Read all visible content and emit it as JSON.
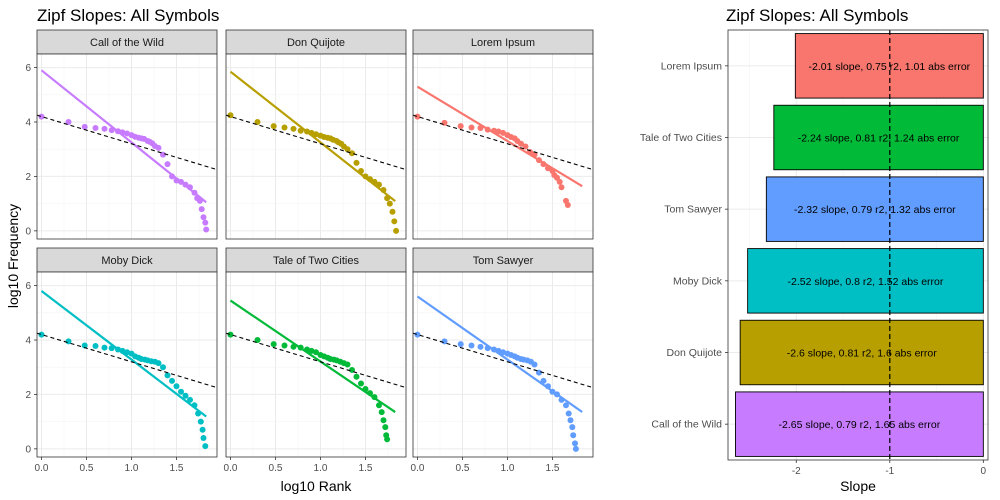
{
  "left_panel": {
    "title": "Zipf Slopes: All Symbols",
    "xlabel": "log10 Rank",
    "ylabel": "log10 Frequency",
    "xlim": [
      -0.05,
      1.95
    ],
    "ylim": [
      -0.3,
      6.5
    ],
    "xticks": [
      0.0,
      0.5,
      1.0,
      1.5
    ],
    "xtick_labels": [
      "0.0",
      "0.5",
      "1.0",
      "1.5"
    ],
    "yticks": [
      0,
      2,
      4,
      6
    ],
    "ytick_labels": [
      "0",
      "2",
      "4",
      "6"
    ],
    "reference_line": {
      "intercept": 4.2,
      "slope": -1,
      "style": "dashed"
    }
  },
  "right_panel": {
    "title": "Zipf Slopes: All Symbols",
    "xlabel": "Slope",
    "xlim": [
      -2.73,
      0.05
    ],
    "xticks": [
      -2,
      -1,
      0
    ],
    "xtick_labels": [
      "-2",
      "-1",
      "0"
    ],
    "reference_x": -1
  },
  "chart_data": [
    {
      "type": "scatter",
      "title": "Zipf Slopes: All Symbols",
      "xlabel": "log10 Rank",
      "ylabel": "log10 Frequency",
      "facets": [
        {
          "name": "Call of the Wild",
          "color": "#C77CFF",
          "fit": {
            "intercept": 5.9,
            "slope": -2.65
          },
          "points": [
            [
              0.0,
              4.2
            ],
            [
              0.3,
              4.0
            ],
            [
              0.48,
              3.82
            ],
            [
              0.6,
              3.78
            ],
            [
              0.7,
              3.75
            ],
            [
              0.78,
              3.7
            ],
            [
              0.85,
              3.66
            ],
            [
              0.9,
              3.62
            ],
            [
              0.95,
              3.58
            ],
            [
              1.0,
              3.52
            ],
            [
              1.04,
              3.46
            ],
            [
              1.08,
              3.42
            ],
            [
              1.11,
              3.4
            ],
            [
              1.14,
              3.38
            ],
            [
              1.18,
              3.3
            ],
            [
              1.2,
              3.28
            ],
            [
              1.23,
              3.22
            ],
            [
              1.26,
              3.12
            ],
            [
              1.3,
              3.05
            ],
            [
              1.35,
              2.8
            ],
            [
              1.4,
              2.45
            ],
            [
              1.45,
              2.0
            ],
            [
              1.5,
              1.85
            ],
            [
              1.55,
              1.8
            ],
            [
              1.6,
              1.7
            ],
            [
              1.65,
              1.6
            ],
            [
              1.7,
              1.4
            ],
            [
              1.73,
              1.2
            ],
            [
              1.76,
              1.1
            ],
            [
              1.78,
              0.8
            ],
            [
              1.8,
              0.5
            ],
            [
              1.82,
              0.3
            ],
            [
              1.83,
              0.05
            ]
          ]
        },
        {
          "name": "Don Quijote",
          "color": "#B79F00",
          "fit": {
            "intercept": 5.85,
            "slope": -2.6
          },
          "points": [
            [
              0.0,
              4.25
            ],
            [
              0.3,
              4.0
            ],
            [
              0.48,
              3.85
            ],
            [
              0.6,
              3.8
            ],
            [
              0.7,
              3.75
            ],
            [
              0.78,
              3.68
            ],
            [
              0.85,
              3.65
            ],
            [
              0.9,
              3.6
            ],
            [
              0.95,
              3.55
            ],
            [
              1.0,
              3.5
            ],
            [
              1.04,
              3.45
            ],
            [
              1.08,
              3.42
            ],
            [
              1.11,
              3.4
            ],
            [
              1.14,
              3.35
            ],
            [
              1.18,
              3.3
            ],
            [
              1.2,
              3.25
            ],
            [
              1.23,
              3.2
            ],
            [
              1.26,
              3.1
            ],
            [
              1.3,
              3.0
            ],
            [
              1.35,
              2.85
            ],
            [
              1.4,
              2.5
            ],
            [
              1.45,
              2.2
            ],
            [
              1.5,
              2.0
            ],
            [
              1.55,
              1.9
            ],
            [
              1.6,
              1.8
            ],
            [
              1.65,
              1.7
            ],
            [
              1.7,
              1.5
            ],
            [
              1.74,
              1.2
            ],
            [
              1.77,
              1.0
            ],
            [
              1.8,
              0.7
            ],
            [
              1.82,
              0.35
            ],
            [
              1.84,
              0.0
            ]
          ]
        },
        {
          "name": "Lorem Ipsum",
          "color": "#F8766D",
          "fit": {
            "intercept": 5.3,
            "slope": -2.0
          },
          "points": [
            [
              0.0,
              4.2
            ],
            [
              0.3,
              3.97
            ],
            [
              0.48,
              3.85
            ],
            [
              0.6,
              3.8
            ],
            [
              0.7,
              3.78
            ],
            [
              0.78,
              3.72
            ],
            [
              0.85,
              3.68
            ],
            [
              0.9,
              3.65
            ],
            [
              0.95,
              3.6
            ],
            [
              1.0,
              3.52
            ],
            [
              1.04,
              3.45
            ],
            [
              1.08,
              3.4
            ],
            [
              1.11,
              3.3
            ],
            [
              1.15,
              3.2
            ],
            [
              1.2,
              3.1
            ],
            [
              1.25,
              2.9
            ],
            [
              1.3,
              2.8
            ],
            [
              1.35,
              2.6
            ],
            [
              1.4,
              2.45
            ],
            [
              1.45,
              2.3
            ],
            [
              1.5,
              2.2
            ],
            [
              1.52,
              2.05
            ],
            [
              1.55,
              1.95
            ],
            [
              1.58,
              1.8
            ],
            [
              1.6,
              1.6
            ],
            [
              1.65,
              1.1
            ],
            [
              1.67,
              0.95
            ]
          ]
        },
        {
          "name": "Moby Dick",
          "color": "#00BFC4",
          "fit": {
            "intercept": 5.8,
            "slope": -2.52
          },
          "points": [
            [
              0.0,
              4.2
            ],
            [
              0.3,
              3.95
            ],
            [
              0.48,
              3.8
            ],
            [
              0.6,
              3.78
            ],
            [
              0.7,
              3.72
            ],
            [
              0.78,
              3.7
            ],
            [
              0.85,
              3.65
            ],
            [
              0.9,
              3.6
            ],
            [
              0.95,
              3.55
            ],
            [
              1.0,
              3.5
            ],
            [
              1.04,
              3.4
            ],
            [
              1.08,
              3.35
            ],
            [
              1.11,
              3.3
            ],
            [
              1.15,
              3.28
            ],
            [
              1.18,
              3.25
            ],
            [
              1.22,
              3.22
            ],
            [
              1.26,
              3.2
            ],
            [
              1.3,
              3.15
            ],
            [
              1.35,
              3.0
            ],
            [
              1.4,
              2.7
            ],
            [
              1.45,
              2.5
            ],
            [
              1.5,
              2.3
            ],
            [
              1.55,
              2.1
            ],
            [
              1.6,
              1.95
            ],
            [
              1.65,
              1.8
            ],
            [
              1.7,
              1.6
            ],
            [
              1.74,
              1.3
            ],
            [
              1.77,
              1.0
            ],
            [
              1.79,
              0.7
            ],
            [
              1.8,
              0.4
            ],
            [
              1.82,
              0.1
            ]
          ]
        },
        {
          "name": "Tale of Two Cities",
          "color": "#00BA38",
          "fit": {
            "intercept": 5.45,
            "slope": -2.24
          },
          "points": [
            [
              0.0,
              4.2
            ],
            [
              0.3,
              4.0
            ],
            [
              0.48,
              3.85
            ],
            [
              0.6,
              3.8
            ],
            [
              0.7,
              3.75
            ],
            [
              0.78,
              3.72
            ],
            [
              0.85,
              3.65
            ],
            [
              0.9,
              3.6
            ],
            [
              0.95,
              3.55
            ],
            [
              1.0,
              3.45
            ],
            [
              1.04,
              3.4
            ],
            [
              1.08,
              3.35
            ],
            [
              1.11,
              3.3
            ],
            [
              1.15,
              3.28
            ],
            [
              1.18,
              3.25
            ],
            [
              1.22,
              3.2
            ],
            [
              1.26,
              3.15
            ],
            [
              1.3,
              3.1
            ],
            [
              1.35,
              2.9
            ],
            [
              1.4,
              2.65
            ],
            [
              1.45,
              2.4
            ],
            [
              1.5,
              2.2
            ],
            [
              1.55,
              2.05
            ],
            [
              1.6,
              1.9
            ],
            [
              1.65,
              1.6
            ],
            [
              1.68,
              1.35
            ],
            [
              1.7,
              1.05
            ],
            [
              1.72,
              0.8
            ],
            [
              1.73,
              0.5
            ],
            [
              1.74,
              0.35
            ]
          ]
        },
        {
          "name": "Tom Sawyer",
          "color": "#619CFF",
          "fit": {
            "intercept": 5.6,
            "slope": -2.32
          },
          "points": [
            [
              0.0,
              4.2
            ],
            [
              0.3,
              3.95
            ],
            [
              0.48,
              3.85
            ],
            [
              0.6,
              3.8
            ],
            [
              0.7,
              3.75
            ],
            [
              0.78,
              3.7
            ],
            [
              0.85,
              3.65
            ],
            [
              0.9,
              3.6
            ],
            [
              0.95,
              3.55
            ],
            [
              1.0,
              3.5
            ],
            [
              1.04,
              3.45
            ],
            [
              1.08,
              3.4
            ],
            [
              1.11,
              3.35
            ],
            [
              1.15,
              3.3
            ],
            [
              1.18,
              3.28
            ],
            [
              1.22,
              3.25
            ],
            [
              1.26,
              3.2
            ],
            [
              1.3,
              3.1
            ],
            [
              1.35,
              2.8
            ],
            [
              1.4,
              2.5
            ],
            [
              1.45,
              2.3
            ],
            [
              1.5,
              2.1
            ],
            [
              1.55,
              2.0
            ],
            [
              1.6,
              1.8
            ],
            [
              1.65,
              1.6
            ],
            [
              1.68,
              1.3
            ],
            [
              1.7,
              1.05
            ],
            [
              1.72,
              0.8
            ],
            [
              1.73,
              0.5
            ],
            [
              1.75,
              0.2
            ],
            [
              1.76,
              0.0
            ]
          ]
        }
      ]
    },
    {
      "type": "bar",
      "orientation": "horizontal",
      "title": "Zipf Slopes: All Symbols",
      "xlabel": "Slope",
      "categories": [
        "Lorem Ipsum",
        "Tale of Two Cities",
        "Tom Sawyer",
        "Moby Dick",
        "Don Quijote",
        "Call of the Wild"
      ],
      "values": [
        -2.01,
        -2.24,
        -2.32,
        -2.52,
        -2.6,
        -2.65
      ],
      "colors": [
        "#F8766D",
        "#00BA38",
        "#619CFF",
        "#00BFC4",
        "#B79F00",
        "#C77CFF"
      ],
      "labels": [
        "-2.01 slope, 0.75 r2, 1.01 abs error",
        "-2.24 slope, 0.81 r2, 1.24 abs error",
        "-2.32 slope, 0.79 r2, 1.32 abs error",
        "-2.52 slope, 0.8 r2, 1.52 abs error",
        "-2.6 slope, 0.81 r2, 1.6 abs error",
        "-2.65 slope, 0.79 r2, 1.65 abs error"
      ]
    }
  ]
}
